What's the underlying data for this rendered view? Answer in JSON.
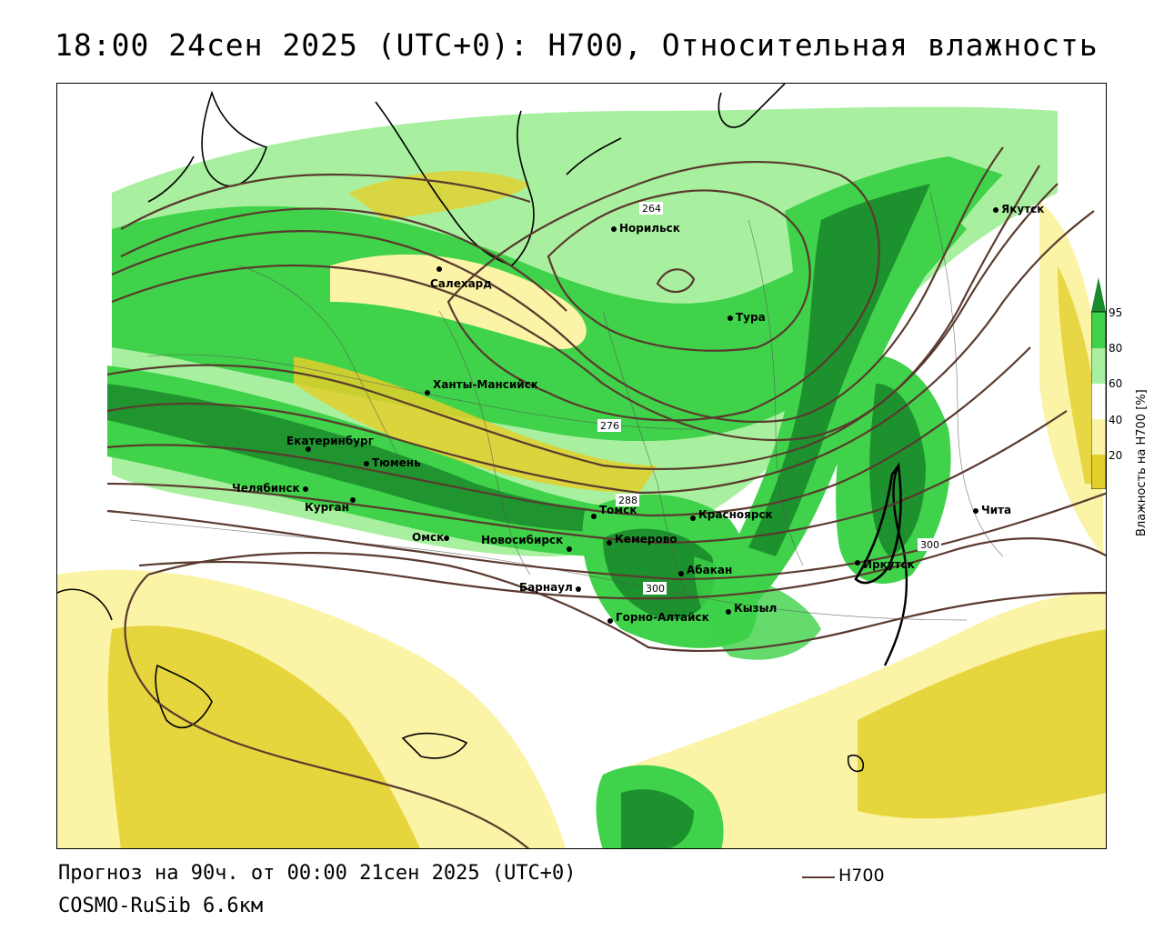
{
  "title": "18:00 24сен 2025 (UTC+0): H700, Относительная влажность",
  "footer": {
    "forecast": "Прогноз на 90ч. от 00:00 21сен 2025 (UTC+0)",
    "model": "COSMO-RuSib 6.6км"
  },
  "legend": {
    "line_label": "H700",
    "line_color": "#5a3a2e"
  },
  "colorbar": {
    "title": "Влажность на H700 [%]",
    "ticks": [
      "95",
      "80",
      "60",
      "40",
      "20"
    ],
    "colors": [
      "#1a8a2a",
      "#3fd24a",
      "#a8f09f",
      "#ffffff",
      "#fbf3a6",
      "#e3cf2c"
    ]
  },
  "cities": [
    {
      "name": "Салехард"
    },
    {
      "name": "Норильск"
    },
    {
      "name": "Тура"
    },
    {
      "name": "Якутск"
    },
    {
      "name": "Ханты-Мансийск"
    },
    {
      "name": "Екатеринбург"
    },
    {
      "name": "Тюмень"
    },
    {
      "name": "Челябинск"
    },
    {
      "name": "Курган"
    },
    {
      "name": "Омск"
    },
    {
      "name": "Новосибирск"
    },
    {
      "name": "Томск"
    },
    {
      "name": "Кемерово"
    },
    {
      "name": "Красноярск"
    },
    {
      "name": "Барнаул"
    },
    {
      "name": "Абакан"
    },
    {
      "name": "Горно-Алтайск"
    },
    {
      "name": "Кызыл"
    },
    {
      "name": "Иркутск"
    },
    {
      "name": "Чита"
    }
  ],
  "contour_labels": [
    "264",
    "276",
    "288",
    "300",
    "300"
  ]
}
